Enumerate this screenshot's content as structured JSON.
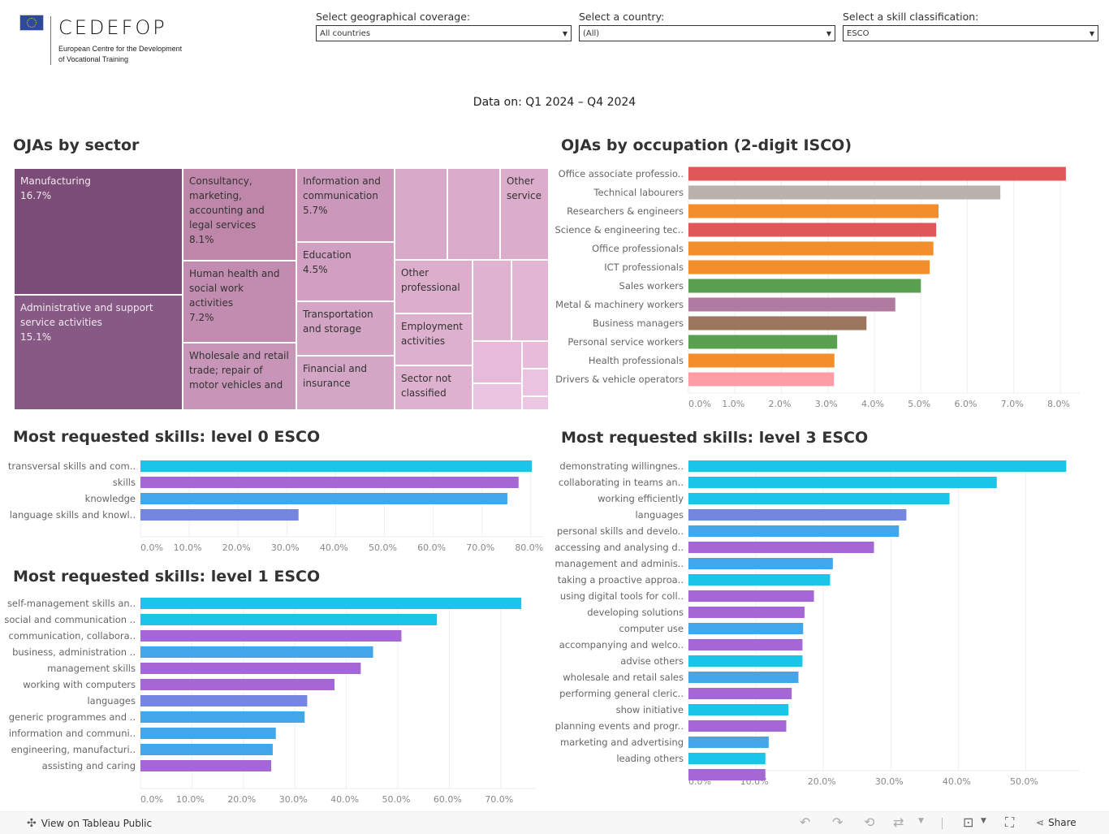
{
  "logo": {
    "wordmark": "CEDEFOP",
    "subtitle_line1": "European Centre for the Development",
    "subtitle_line2": "of Vocational Training"
  },
  "filters": [
    {
      "label": "Select geographical coverage:",
      "value": "All countries"
    },
    {
      "label": "Select a country:",
      "value": "(All)"
    },
    {
      "label": "Select a skill classification:",
      "value": "ESCO"
    }
  ],
  "data_on": "Data on: Q1 2024 – Q4 2024",
  "sector": {
    "title": "OJAs by sector",
    "cells": [
      {
        "name": "Manufacturing",
        "pct": "16.7%",
        "color": "#7a4c76"
      },
      {
        "name": "Administrative and support service activities",
        "pct": "15.1%",
        "color": "#865a84"
      },
      {
        "name": "Consultancy, marketing, accounting and legal services",
        "pct": "8.1%",
        "color": "#be86a9"
      },
      {
        "name": "Human health and social work activities",
        "pct": "7.2%",
        "color": "#c28bb0"
      },
      {
        "name": "Wholesale and retail trade; repair of motor vehicles and",
        "pct": "",
        "color": "#c795b8"
      },
      {
        "name": "Information and communication",
        "pct": "5.7%",
        "color": "#cb97ba"
      },
      {
        "name": "Education",
        "pct": "4.5%",
        "color": "#d19fc1"
      },
      {
        "name": "Transportation and storage",
        "pct": "",
        "color": "#d3a4c3"
      },
      {
        "name": "Financial and insurance",
        "pct": "",
        "color": "#d4a6c5"
      },
      {
        "name": "",
        "pct": "",
        "color": "#d8a9c8"
      },
      {
        "name": "",
        "pct": "",
        "color": "#d9aac9"
      },
      {
        "name": "Other service",
        "pct": "",
        "color": "#dbadca"
      },
      {
        "name": "Other professional",
        "pct": "",
        "color": "#dcaecc"
      },
      {
        "name": "Employment activities",
        "pct": "",
        "color": "#ddb0cd"
      },
      {
        "name": "Sector not classified",
        "pct": "",
        "color": "#deb1ce"
      },
      {
        "name": "",
        "pct": "",
        "color": "#e0b3d0"
      },
      {
        "name": "",
        "pct": "",
        "color": "#e2b5d2"
      },
      {
        "name": "",
        "pct": "",
        "color": "#e5badb"
      },
      {
        "name": "",
        "pct": "",
        "color": "#e6bcd8"
      },
      {
        "name": "",
        "pct": "",
        "color": "#e9c3df"
      },
      {
        "name": "",
        "pct": "",
        "color": "#eac4e0"
      },
      {
        "name": "",
        "pct": "",
        "color": "#ecc7e2"
      }
    ]
  },
  "chart_data": [
    {
      "id": "occupation",
      "type": "bar",
      "orientation": "horizontal",
      "title": "OJAs by occupation (2-digit ISCO)",
      "xlabel": "",
      "ylabel": "",
      "xlim": [
        0,
        8.4
      ],
      "ticks": [
        0,
        1,
        2,
        3,
        4,
        5,
        6,
        7,
        8
      ],
      "tick_labels": [
        "0.0%",
        "1.0%",
        "2.0%",
        "3.0%",
        "4.0%",
        "5.0%",
        "6.0%",
        "7.0%",
        "8.0%"
      ],
      "categories": [
        "Office associate professio..",
        "Technical labourers",
        "Researchers & engineers",
        "Science & engineering tec..",
        "Office professionals",
        "ICT professionals",
        "Sales workers",
        "Metal & machinery workers",
        "Business managers",
        "Personal service workers",
        "Health professionals",
        "Drivers & vehicle operators"
      ],
      "values": [
        8.12,
        6.71,
        5.38,
        5.33,
        5.27,
        5.19,
        5.0,
        4.45,
        3.83,
        3.2,
        3.14,
        3.13
      ],
      "colors": [
        "#e15759",
        "#bab0ac",
        "#f28e2b",
        "#e15759",
        "#f28e2b",
        "#f28e2b",
        "#59a14f",
        "#b07aa1",
        "#9c755f",
        "#59a14f",
        "#f28e2b",
        "#ff9da7"
      ],
      "grid": true
    },
    {
      "id": "level0",
      "type": "bar",
      "orientation": "horizontal",
      "title": "Most requested skills: level 0 ESCO",
      "xlabel": "",
      "ylabel": "",
      "xlim": [
        0,
        83
      ],
      "ticks": [
        0,
        10,
        20,
        30,
        40,
        50,
        60,
        70,
        80
      ],
      "tick_labels": [
        "0.0%",
        "10.0%",
        "20.0%",
        "30.0%",
        "40.0%",
        "50.0%",
        "60.0%",
        "70.0%",
        "80.0%"
      ],
      "categories": [
        "transversal skills and com..",
        "skills",
        "knowledge",
        "language skills and knowl.."
      ],
      "values": [
        80.2,
        77.5,
        75.2,
        32.4
      ],
      "colors": [
        "#1ac5e8",
        "#a566d6",
        "#42a7ea",
        "#7486e0"
      ],
      "grid": true
    },
    {
      "id": "level1",
      "type": "bar",
      "orientation": "horizontal",
      "title": "Most requested skills: level 1 ESCO",
      "xlabel": "",
      "ylabel": "",
      "xlim": [
        0,
        77.5
      ],
      "ticks": [
        0,
        10,
        20,
        30,
        40,
        50,
        60,
        70
      ],
      "tick_labels": [
        "0.0%",
        "10.0%",
        "20.0%",
        "30.0%",
        "40.0%",
        "50.0%",
        "60.0%",
        "70.0%"
      ],
      "categories": [
        "self-management skills an..",
        "social and communication ..",
        "communication, collabora..",
        "business, administration ..",
        "management skills",
        "working with computers",
        "languages",
        "generic programmes and ..",
        "information and communi..",
        "engineering, manufacturi..",
        "assisting and caring"
      ],
      "values": [
        74.0,
        57.6,
        50.7,
        45.2,
        42.8,
        37.7,
        32.4,
        31.9,
        26.3,
        25.7,
        25.4
      ],
      "colors": [
        "#1ac5e8",
        "#1ac5e8",
        "#a566d6",
        "#42a7ea",
        "#a566d6",
        "#a566d6",
        "#7486e0",
        "#42a7ea",
        "#42a7ea",
        "#42a7ea",
        "#a566d6"
      ],
      "grid": true
    },
    {
      "id": "level3",
      "type": "bar",
      "orientation": "horizontal",
      "title": "Most requested skills: level 3 ESCO",
      "xlabel": "",
      "ylabel": "",
      "xlim": [
        0,
        58
      ],
      "ticks": [
        0,
        10,
        20,
        30,
        40,
        50
      ],
      "tick_labels": [
        "0.0%",
        "10.0%",
        "20.0%",
        "30.0%",
        "40.0%",
        "50.0%"
      ],
      "categories": [
        "demonstrating willingnes..",
        "collaborating in teams an..",
        "working efficiently",
        "languages",
        "personal skills and develo..",
        "accessing and analysing d..",
        "management and adminis..",
        "taking a proactive approa..",
        "using digital tools for coll..",
        "developing solutions",
        "computer use",
        "accompanying and welco..",
        "advise others",
        "wholesale and retail sales",
        "performing general cleric..",
        "show initiative",
        "planning events and progr..",
        "marketing and advertising",
        "leading others",
        ""
      ],
      "values": [
        56.0,
        45.7,
        38.7,
        32.3,
        31.2,
        27.5,
        21.4,
        21.0,
        18.6,
        17.2,
        17.0,
        16.9,
        16.9,
        16.3,
        15.3,
        14.8,
        14.5,
        11.9,
        11.4,
        11.4
      ],
      "colors": [
        "#1ac5e8",
        "#1ac5e8",
        "#1ac5e8",
        "#7486e0",
        "#42a7ea",
        "#a566d6",
        "#42a7ea",
        "#1ac5e8",
        "#a566d6",
        "#a566d6",
        "#42a7ea",
        "#a566d6",
        "#1ac5e8",
        "#42a7ea",
        "#a566d6",
        "#1ac5e8",
        "#a566d6",
        "#42a7ea",
        "#1ac5e8",
        "#a566d6"
      ],
      "grid": true
    }
  ],
  "footer": {
    "view_on_tableau": "View on Tableau Public",
    "share": "Share",
    "icons": [
      "undo-icon",
      "redo-icon",
      "revert-icon",
      "refresh-icon",
      "download-icon",
      "fullscreen-icon",
      "share-icon"
    ]
  }
}
